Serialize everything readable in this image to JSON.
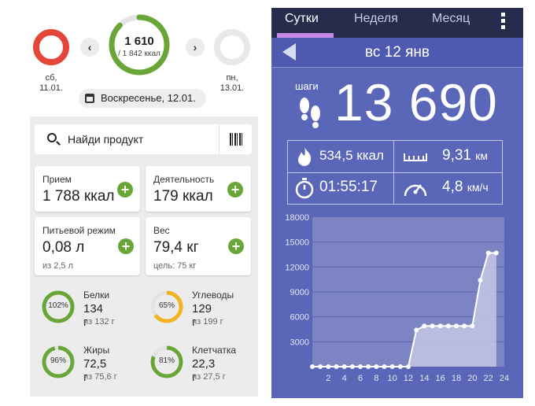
{
  "left_panel": {
    "prev_day": {
      "label_day": "сб,",
      "label_date": "11.01.",
      "ring_color": "#e4473a"
    },
    "next_day": {
      "label_day": "пн,",
      "label_date": "13.01.",
      "ring_color": "#e8e8e8"
    },
    "prev_button": "‹",
    "next_button": "›",
    "calories": {
      "eaten": "1 610",
      "goal": "/ 1 842 ккал",
      "progress": 0.874,
      "ring_color": "#6aa637"
    },
    "date_selector": "Воскресенье, 12.01.",
    "search": {
      "placeholder": "Найди продукт",
      "barcode_icon": "barcode-icon"
    },
    "cards": {
      "intake": {
        "title": "Прием",
        "value": "1 788 ккал"
      },
      "activity": {
        "title": "Деятельность",
        "value": "179 ккал"
      },
      "water": {
        "title": "Питьевой режим",
        "value": "0,08 л",
        "sub": "из 2,5 л"
      },
      "weight": {
        "title": "Вес",
        "value": "79,4 кг",
        "sub": "цель: 75 кг"
      },
      "plus": "+"
    },
    "nutrients": [
      {
        "name": "Белки",
        "value": "134 г",
        "of": "из 132 г",
        "pct_label": "102%",
        "progress": 1.0,
        "color": "#6aa637"
      },
      {
        "name": "Углеводы",
        "value": "129 г",
        "of": "из 199 г",
        "pct_label": "65%",
        "progress": 0.65,
        "color": "#f2b322"
      },
      {
        "name": "Жиры",
        "value": "72,5 г",
        "of": "из 75,6 г",
        "pct_label": "96%",
        "progress": 0.96,
        "color": "#6aa637"
      },
      {
        "name": "Клетчатка",
        "value": "22,3 г",
        "of": "из 27,5 г",
        "pct_label": "81%",
        "progress": 0.81,
        "color": "#6aa637"
      }
    ]
  },
  "right_panel": {
    "tabs": [
      "Сутки",
      "Неделя",
      "Месяц"
    ],
    "date": "вс 12 янв",
    "steps_label": "шаги",
    "steps": "13 690",
    "stats": {
      "calories": "534,5 ккал",
      "distance_value": "9,31",
      "distance_unit": "км",
      "duration": "01:55:17",
      "speed_value": "4,8",
      "speed_unit": "км/ч"
    }
  },
  "chart_data": {
    "type": "area",
    "title": "",
    "xlabel": "",
    "ylabel": "",
    "x_ticks": [
      "2",
      "4",
      "6",
      "8",
      "10",
      "12",
      "14",
      "16",
      "18",
      "20",
      "22",
      "24"
    ],
    "y_ticks": [
      "3000",
      "6000",
      "9000",
      "12000",
      "15000",
      "18000"
    ],
    "xlim": [
      0,
      24
    ],
    "ylim": [
      0,
      18000
    ],
    "x": [
      0,
      1,
      2,
      3,
      4,
      5,
      6,
      7,
      8,
      9,
      10,
      11,
      12,
      13,
      14,
      15,
      16,
      17,
      18,
      19,
      20,
      21,
      22,
      23
    ],
    "values": [
      0,
      0,
      0,
      0,
      0,
      0,
      0,
      0,
      0,
      0,
      0,
      0,
      0,
      4400,
      4900,
      4900,
      4900,
      4900,
      4900,
      4900,
      4900,
      10400,
      13690,
      13690
    ],
    "grid": true
  }
}
